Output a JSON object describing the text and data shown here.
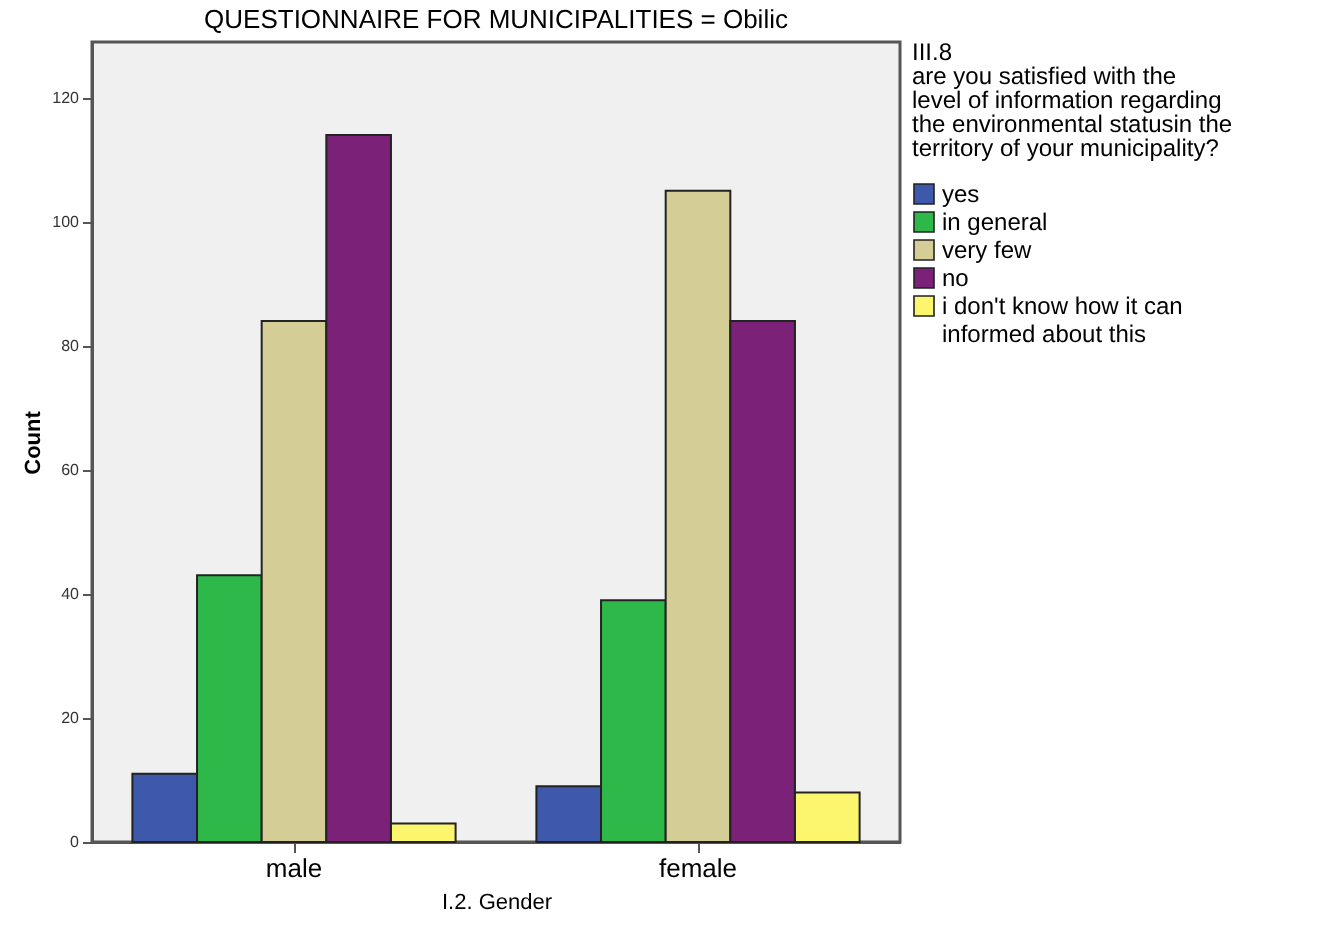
{
  "chart_data": {
    "type": "bar",
    "title": "QUESTIONNAIRE FOR MUNICIPALITIES = Obilic",
    "xlabel": "I.2. Gender",
    "ylabel": "Count",
    "legend_title": "III.8\nare you satisfied with the\nlevel of information regarding\nthe environmental statusin the\nterritory of your municipality?",
    "categories": [
      "male",
      "female"
    ],
    "series": [
      {
        "name": "yes",
        "color": "#3e58ac",
        "values": [
          11,
          9
        ]
      },
      {
        "name": "in general",
        "color": "#2fb84a",
        "values": [
          43,
          39
        ]
      },
      {
        "name": "very few",
        "color": "#d4ce96",
        "values": [
          84,
          105
        ]
      },
      {
        "name": "no",
        "color": "#7b2278",
        "values": [
          114,
          84
        ]
      },
      {
        "name": "i don't know how it can informed about this",
        "color": "#fbf66e",
        "values": [
          3,
          8
        ]
      }
    ],
    "ylim": [
      0,
      129
    ],
    "yticks": [
      0,
      20,
      40,
      60,
      80,
      100,
      120
    ],
    "grid": false,
    "legend": "right"
  }
}
